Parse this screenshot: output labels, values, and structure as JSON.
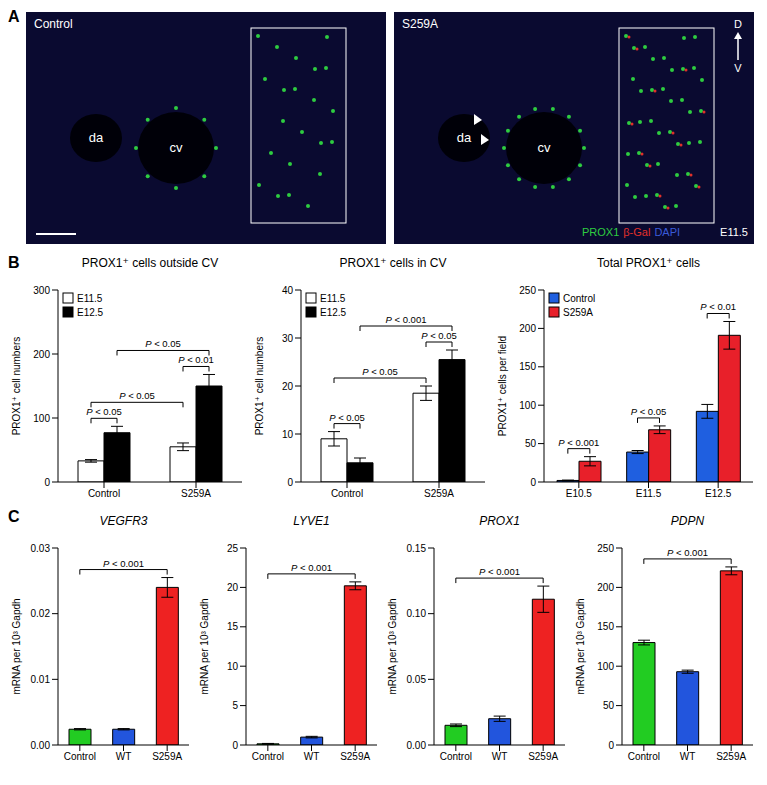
{
  "panel_letters": [
    "A",
    "B",
    "C"
  ],
  "image": {
    "panels": [
      {
        "label": "Control",
        "structures": [
          "da",
          "cv"
        ]
      },
      {
        "label": "S259A",
        "structures": [
          "da",
          "cv"
        ]
      }
    ],
    "axis_labels": [
      "D",
      "V"
    ],
    "stains": [
      {
        "name": "PROX1",
        "color": "#2ecc40"
      },
      {
        "name": "β-Gal",
        "color": "#e0302a"
      },
      {
        "name": "DAPI",
        "color": "#3a5bd9"
      }
    ],
    "stage": "E11.5"
  },
  "chart_data": [
    {
      "type": "bar",
      "title": "PROX1⁺ cells outside CV",
      "y_label": "PROX1⁺ cell numbers",
      "categories": [
        "Control",
        "S259A"
      ],
      "series": [
        {
          "name": "E11.5",
          "color": "#ffffff",
          "values": [
            33,
            55
          ],
          "errors": [
            2,
            6
          ]
        },
        {
          "name": "E12.5",
          "color": "#000000",
          "values": [
            77,
            150
          ],
          "errors": [
            10,
            18
          ]
        }
      ],
      "ylim": [
        0,
        300
      ],
      "yticks": [
        0,
        100,
        200,
        300
      ],
      "legend": "upper left",
      "annotations": [
        "P < 0.05",
        "P < 0.01",
        "P < 0.05",
        "P < 0.05"
      ]
    },
    {
      "type": "bar",
      "title": "PROX1⁺ cells in CV",
      "y_label": "PROX1⁺ cell numbers",
      "categories": [
        "Control",
        "S259A"
      ],
      "series": [
        {
          "name": "E11.5",
          "color": "#ffffff",
          "values": [
            9,
            18.5
          ],
          "errors": [
            1.5,
            1.5
          ]
        },
        {
          "name": "E12.5",
          "color": "#000000",
          "values": [
            4,
            25.5
          ],
          "errors": [
            1,
            2
          ]
        }
      ],
      "ylim": [
        0,
        40
      ],
      "yticks": [
        0,
        10,
        20,
        30,
        40
      ],
      "legend": "upper left",
      "annotations": [
        "P < 0.05",
        "P < 0.05",
        "P < 0.05",
        "P < 0.001"
      ]
    },
    {
      "type": "bar",
      "title": "Total PROX1⁺ cells",
      "y_label": "PROX1⁺ cells per field",
      "categories": [
        "E10.5",
        "E11.5",
        "E12.5"
      ],
      "series": [
        {
          "name": "Control",
          "color": "#1f5fe0",
          "values": [
            2,
            39,
            92
          ],
          "errors": [
            0.5,
            2,
            9
          ]
        },
        {
          "name": "S259A",
          "color": "#e8202a",
          "values": [
            27,
            68,
            191
          ],
          "errors": [
            6,
            5,
            18
          ]
        }
      ],
      "ylim": [
        0,
        250
      ],
      "yticks": [
        0,
        50,
        100,
        150,
        200,
        250
      ],
      "legend": "upper left",
      "annotations": [
        "P < 0.001",
        "P < 0.05",
        "P < 0.01"
      ]
    },
    {
      "type": "bar",
      "title": "VEGFR3",
      "y_label": "mRNA per 10³ Gapdh",
      "categories": [
        "Control",
        "WT",
        "S259A"
      ],
      "values": [
        0.0024,
        0.0024,
        0.024
      ],
      "errors": [
        0.0001,
        0.0001,
        0.0015
      ],
      "colors": [
        "#22cc22",
        "#2255dd",
        "#ee2222"
      ],
      "ylim": [
        0,
        0.03
      ],
      "yticks": [
        {
          "value": 0,
          "label": "0.00"
        },
        0.01,
        0.02,
        0.03
      ],
      "annotations": [
        "P < 0.001"
      ]
    },
    {
      "type": "bar",
      "title": "LYVE1",
      "y_label": "mRNA per 10³ Gapdh",
      "categories": [
        "Control",
        "WT",
        "S259A"
      ],
      "values": [
        0.15,
        1.0,
        20.2
      ],
      "errors": [
        0.05,
        0.1,
        0.5
      ],
      "colors": [
        "#22cc22",
        "#2255dd",
        "#ee2222"
      ],
      "ylim": [
        0,
        25
      ],
      "yticks": [
        0,
        5,
        10,
        15,
        20,
        25
      ],
      "annotations": [
        "P < 0.001"
      ]
    },
    {
      "type": "bar",
      "title": "PROX1",
      "y_label": "mRNA per 10³ Gapdh",
      "categories": [
        "Control",
        "WT",
        "S259A"
      ],
      "values": [
        0.015,
        0.02,
        0.111
      ],
      "errors": [
        0.001,
        0.002,
        0.01
      ],
      "colors": [
        "#22cc22",
        "#2255dd",
        "#ee2222"
      ],
      "ylim": [
        0,
        0.15
      ],
      "yticks": [
        {
          "value": 0,
          "label": "0.00"
        },
        0.05,
        {
          "value": 0.1,
          "label": "0.10"
        },
        0.15
      ],
      "annotations": [
        "P < 0.001"
      ]
    },
    {
      "type": "bar",
      "title": "PDPN",
      "y_label": "mRNA per 10³ Gapdh",
      "categories": [
        "Control",
        "WT",
        "S259A"
      ],
      "values": [
        130,
        93,
        221
      ],
      "errors": [
        3,
        2,
        5
      ],
      "colors": [
        "#22cc22",
        "#2255dd",
        "#ee2222"
      ],
      "ylim": [
        0,
        250
      ],
      "yticks": [
        0,
        50,
        100,
        150,
        200,
        250
      ],
      "annotations": [
        "P < 0.001"
      ]
    }
  ]
}
